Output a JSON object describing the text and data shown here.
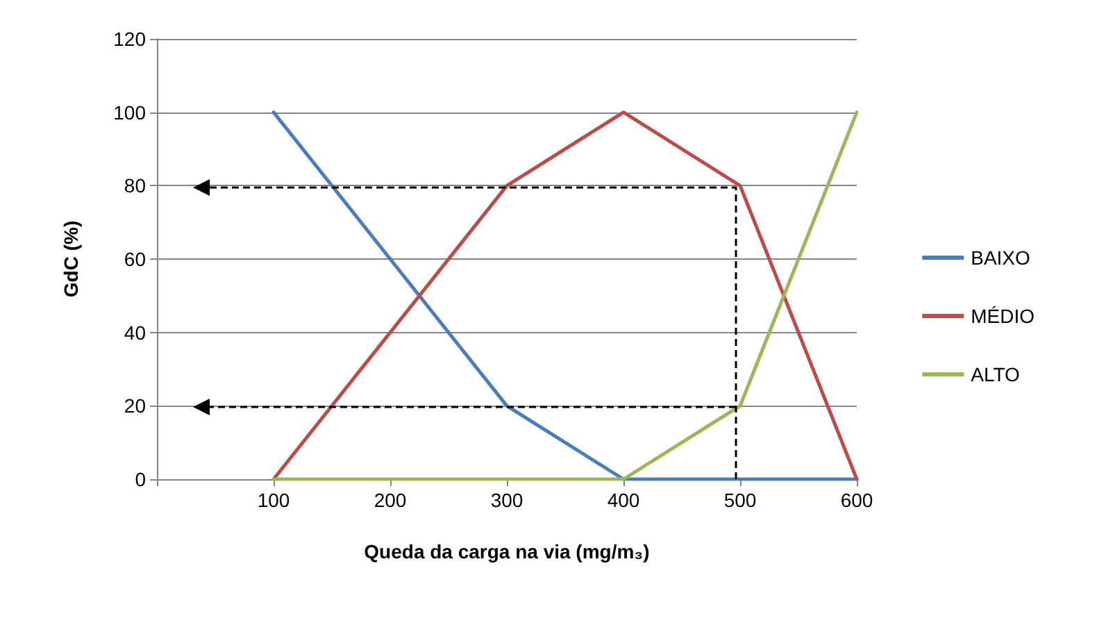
{
  "chart_data": {
    "type": "line",
    "xlabel": "Queda da carga na via (mg/m₃)",
    "ylabel": "GdC (%)",
    "xlim": [
      0,
      600
    ],
    "xticks": [
      {
        "value": 0,
        "label": null
      },
      100,
      200,
      300,
      400,
      500,
      600
    ],
    "ylim": [
      0,
      120
    ],
    "yticks": [
      0,
      20,
      40,
      60,
      80,
      100,
      120
    ],
    "grid": "y",
    "legend": "right",
    "marker": "none",
    "line_style": "solid",
    "series": [
      {
        "name": "BAIXO",
        "color": "#4a7ebb",
        "x": [
          100,
          300,
          400,
          600
        ],
        "values": [
          100,
          20,
          0,
          0
        ]
      },
      {
        "name": "MÉDIO",
        "color": "#be4b48",
        "x": [
          100,
          300,
          400,
          500,
          600
        ],
        "values": [
          0,
          80,
          100,
          80,
          0
        ]
      },
      {
        "name": "ALTO",
        "color": "#98b954",
        "x": [
          100,
          400,
          500,
          600
        ],
        "values": [
          0,
          0,
          20,
          100
        ]
      }
    ]
  }
}
